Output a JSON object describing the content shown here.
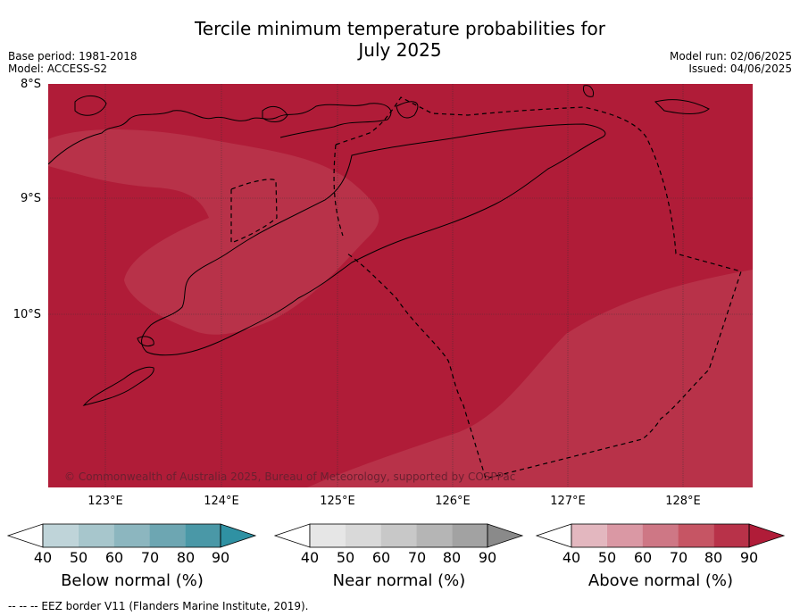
{
  "title_line1": "Tercile minimum temperature probabilities for",
  "title_line2": "July 2025",
  "base_period": "Base period: 1981-2018",
  "model": "Model: ACCESS-S2",
  "model_run": "Model run: 02/06/2025",
  "issued": "Issued: 04/06/2025",
  "lat_labels": [
    "8°S",
    "9°S",
    "10°S"
  ],
  "lon_labels": [
    "123°E",
    "124°E",
    "125°E",
    "126°E",
    "127°E",
    "128°E"
  ],
  "copyright": "© Commonwealth of Australia 2025, Bureau of Meteorology, supported by COSPPac",
  "map_colors": {
    "above_90": "#b01c38",
    "above_80": "#b83249",
    "coast": "#000000"
  },
  "colorbars": [
    {
      "name": "below",
      "label": "Below normal (%)",
      "ticks": [
        "40",
        "50",
        "60",
        "70",
        "80",
        "90"
      ],
      "colors": [
        "#bfd4d9",
        "#a7c6cc",
        "#8cb6bf",
        "#6da6b2",
        "#4a98a7",
        "#2f91a3"
      ]
    },
    {
      "name": "near",
      "label": "Near normal (%)",
      "ticks": [
        "40",
        "50",
        "60",
        "70",
        "80",
        "90"
      ],
      "colors": [
        "#e6e6e6",
        "#d9d9d9",
        "#c8c8c8",
        "#b5b5b5",
        "#a2a2a2",
        "#8a8a8a"
      ]
    },
    {
      "name": "above",
      "label": "Above normal (%)",
      "ticks": [
        "40",
        "50",
        "60",
        "70",
        "80",
        "90"
      ],
      "colors": [
        "#e3b7bf",
        "#da98a4",
        "#ce7785",
        "#c65564",
        "#b83249",
        "#b01c38"
      ]
    }
  ],
  "footer": "--  --  -- EEZ border V11 (Flanders Marine Institute, 2019)."
}
